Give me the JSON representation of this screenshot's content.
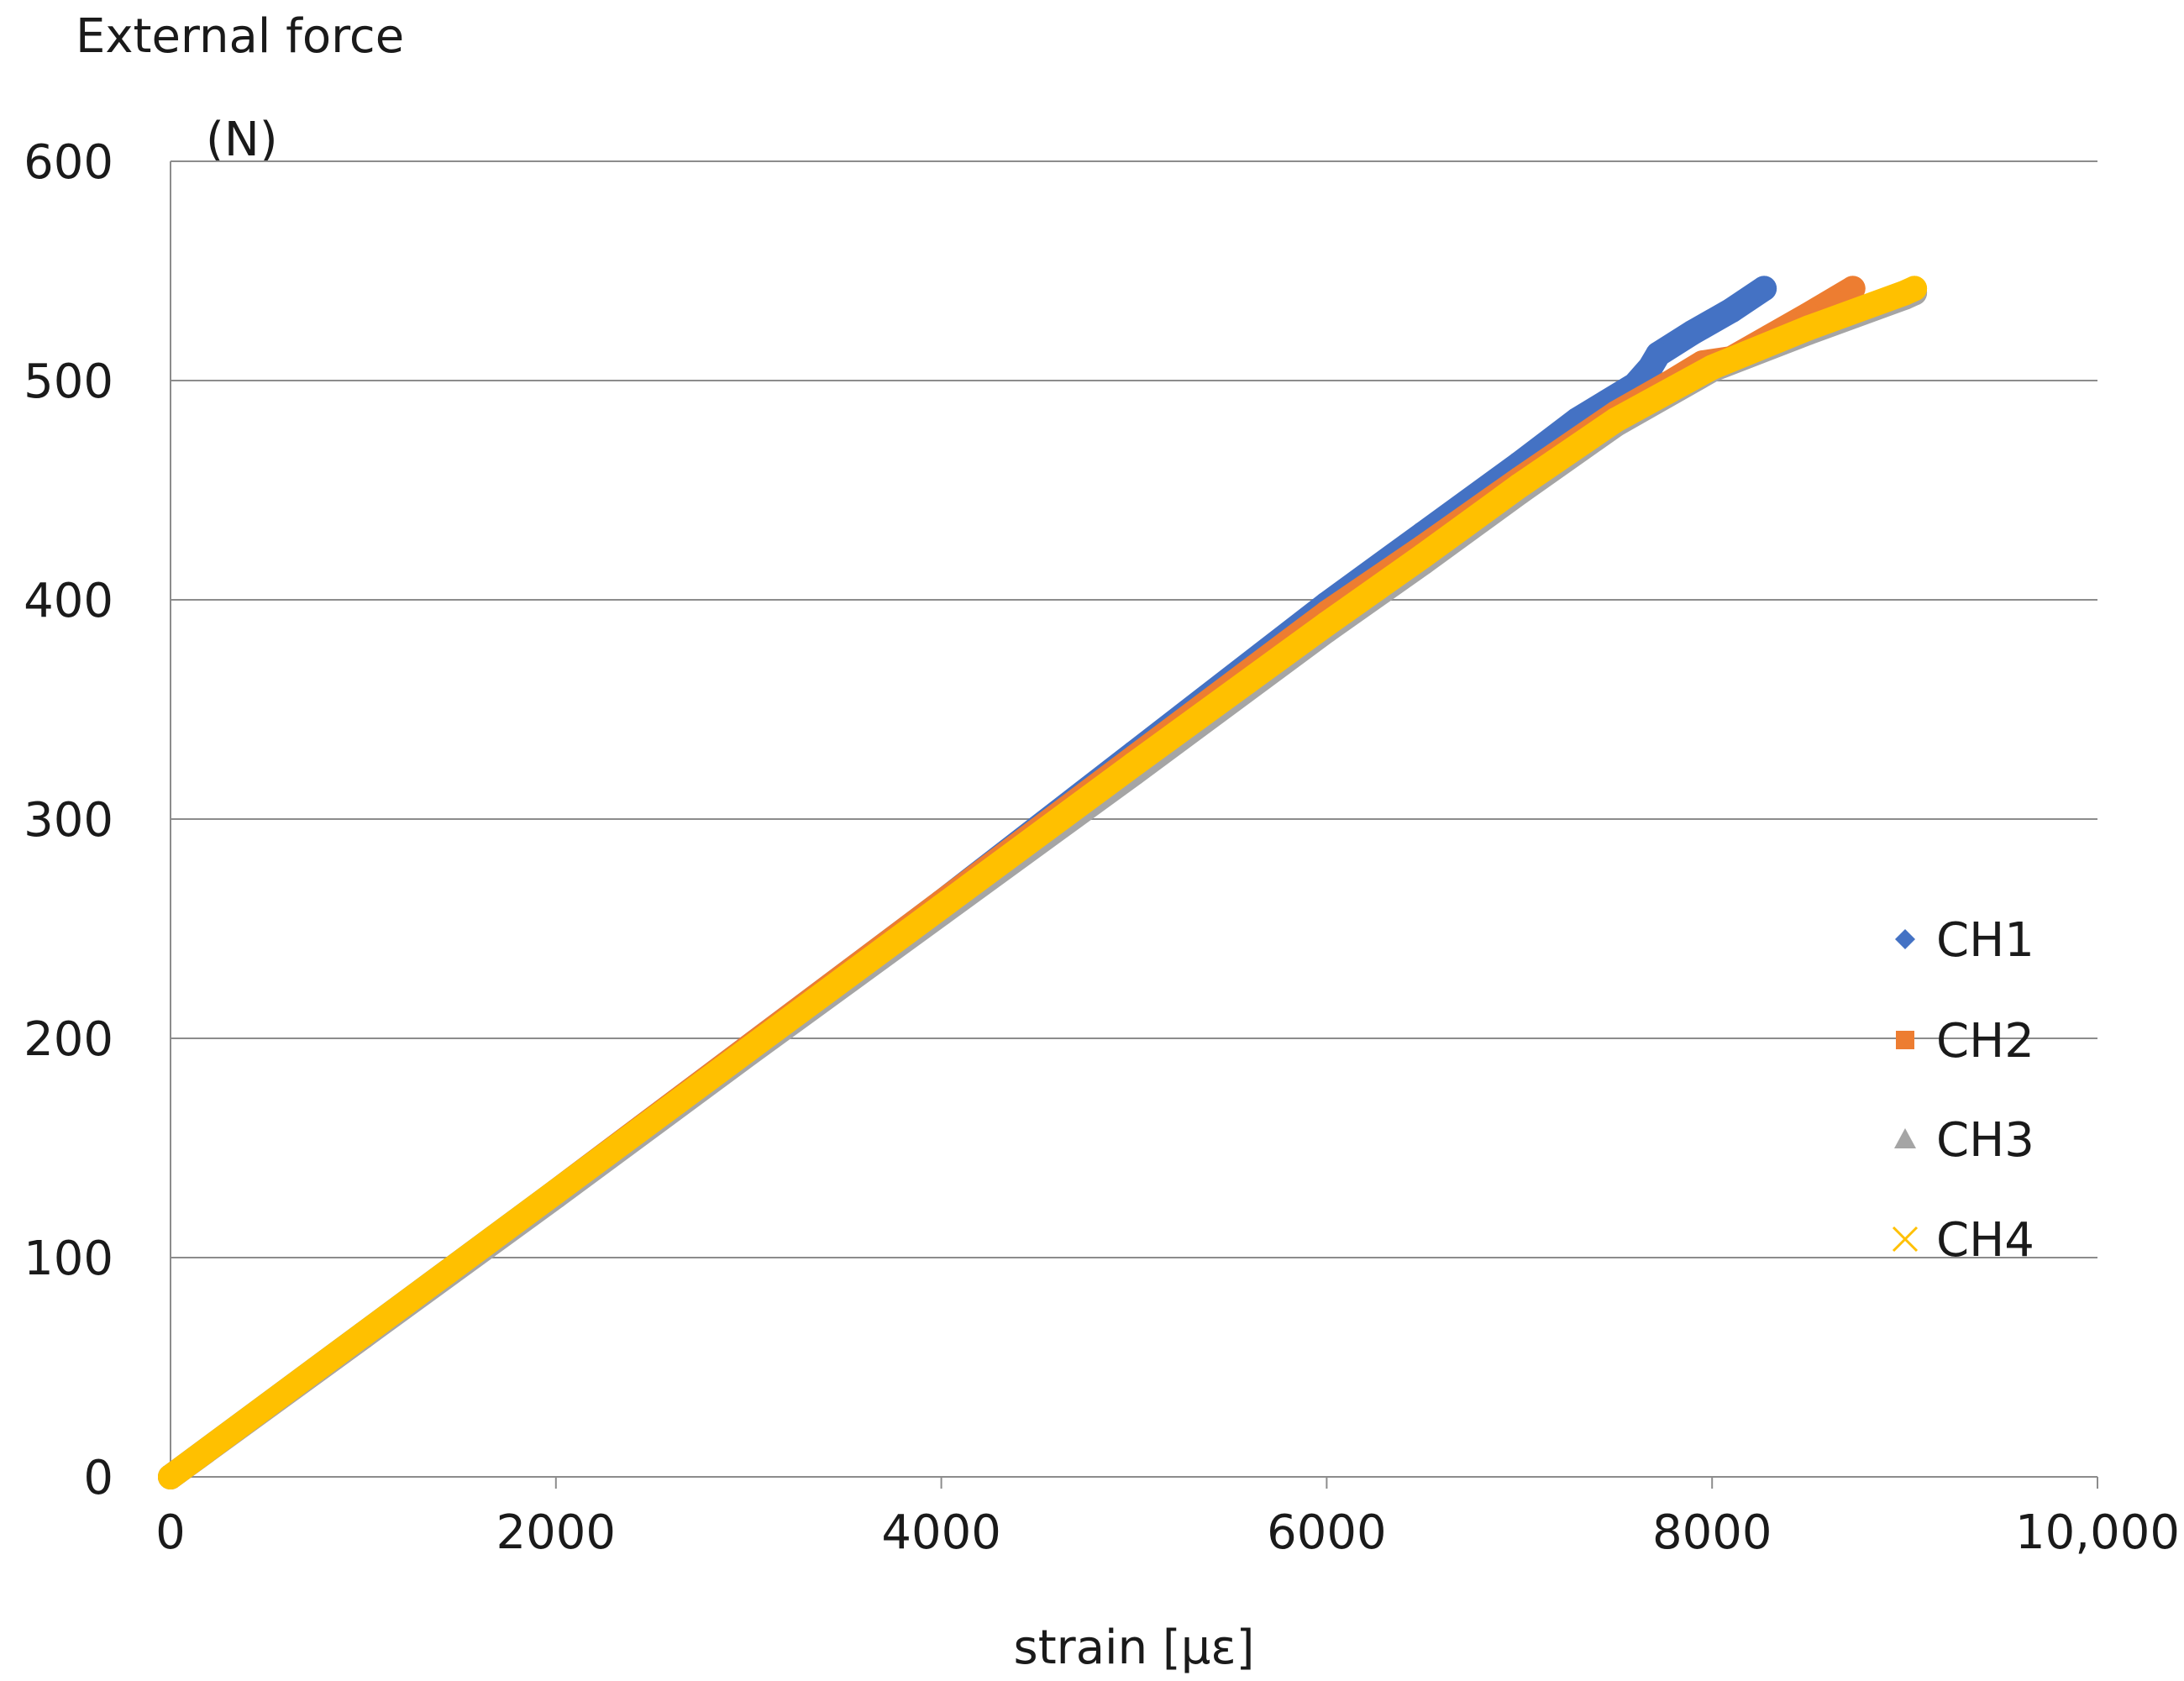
{
  "chart_data": {
    "type": "scatter",
    "title": "",
    "ylabel": "External force",
    "yunit": "(N)",
    "xlabel": "strain [με]",
    "xlim": [
      0,
      10000
    ],
    "ylim": [
      0,
      600
    ],
    "xticks": [
      0,
      2000,
      4000,
      6000,
      8000,
      10000
    ],
    "xtick_labels": [
      "0",
      "2000",
      "4000",
      "6000",
      "8000",
      "10,000"
    ],
    "yticks": [
      0,
      100,
      200,
      300,
      400,
      500,
      600
    ],
    "ytick_labels": [
      "0",
      "100",
      "200",
      "300",
      "400",
      "500",
      "600"
    ],
    "grid": {
      "horizontal": true,
      "vertical": false
    },
    "legend_position": "right",
    "series": [
      {
        "name": "CH1",
        "color": "#4472C4",
        "marker": "diamond",
        "x": [
          0,
          1000,
          2000,
          3000,
          4000,
          5000,
          6000,
          6500,
          7000,
          7300,
          7450,
          7600,
          7680,
          7720,
          7900,
          8100,
          8270
        ],
        "y": [
          0,
          65,
          130,
          196,
          262,
          330,
          398,
          430,
          462,
          482,
          490,
          498,
          506,
          512,
          522,
          532,
          542
        ]
      },
      {
        "name": "CH2",
        "color": "#ED7D31",
        "marker": "square",
        "x": [
          0,
          1000,
          2000,
          3000,
          4000,
          5000,
          6000,
          6500,
          7000,
          7500,
          7800,
          7950,
          8100,
          8300,
          8500,
          8730
        ],
        "y": [
          0,
          64,
          130,
          196,
          262,
          328,
          394,
          424,
          455,
          485,
          500,
          508,
          510,
          520,
          530,
          542
        ]
      },
      {
        "name": "CH3",
        "color": "#A5A5A5",
        "marker": "triangle",
        "x": [
          0,
          1000,
          2000,
          3000,
          4000,
          5000,
          6000,
          6500,
          7000,
          7500,
          8000,
          8500,
          9000,
          9050
        ],
        "y": [
          0,
          64,
          128,
          193,
          257,
          321,
          386,
          417,
          449,
          480,
          505,
          522,
          538,
          540
        ]
      },
      {
        "name": "CH4",
        "color": "#FFC000",
        "marker": "x",
        "x": [
          0,
          1000,
          2000,
          3000,
          4000,
          5000,
          6000,
          6500,
          7000,
          7500,
          8000,
          8500,
          9000,
          9050
        ],
        "y": [
          0,
          65,
          130,
          195,
          260,
          325,
          389,
          420,
          452,
          482,
          506,
          524,
          540,
          542
        ]
      }
    ]
  }
}
